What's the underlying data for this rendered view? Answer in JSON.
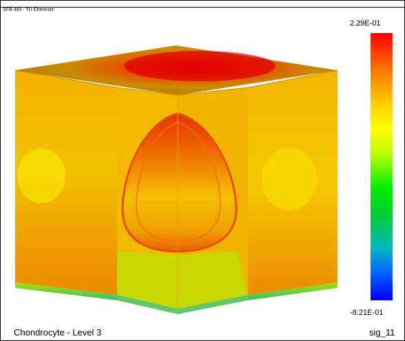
{
  "header": {
    "label": "SFB 393 - TU Chemnitz"
  },
  "colorbar": {
    "max_label": "2.29E-01",
    "min_label": "-8.21E-01",
    "colors": [
      "#ff0000",
      "#ff7700",
      "#ffcc00",
      "#ffff00",
      "#b0ff00",
      "#00ee00",
      "#00cc33",
      "#00bbbb",
      "#0060ff",
      "#0000ff"
    ]
  },
  "footer": {
    "title": "Chondrocyte - Level 3",
    "variable": "sig_11"
  }
}
